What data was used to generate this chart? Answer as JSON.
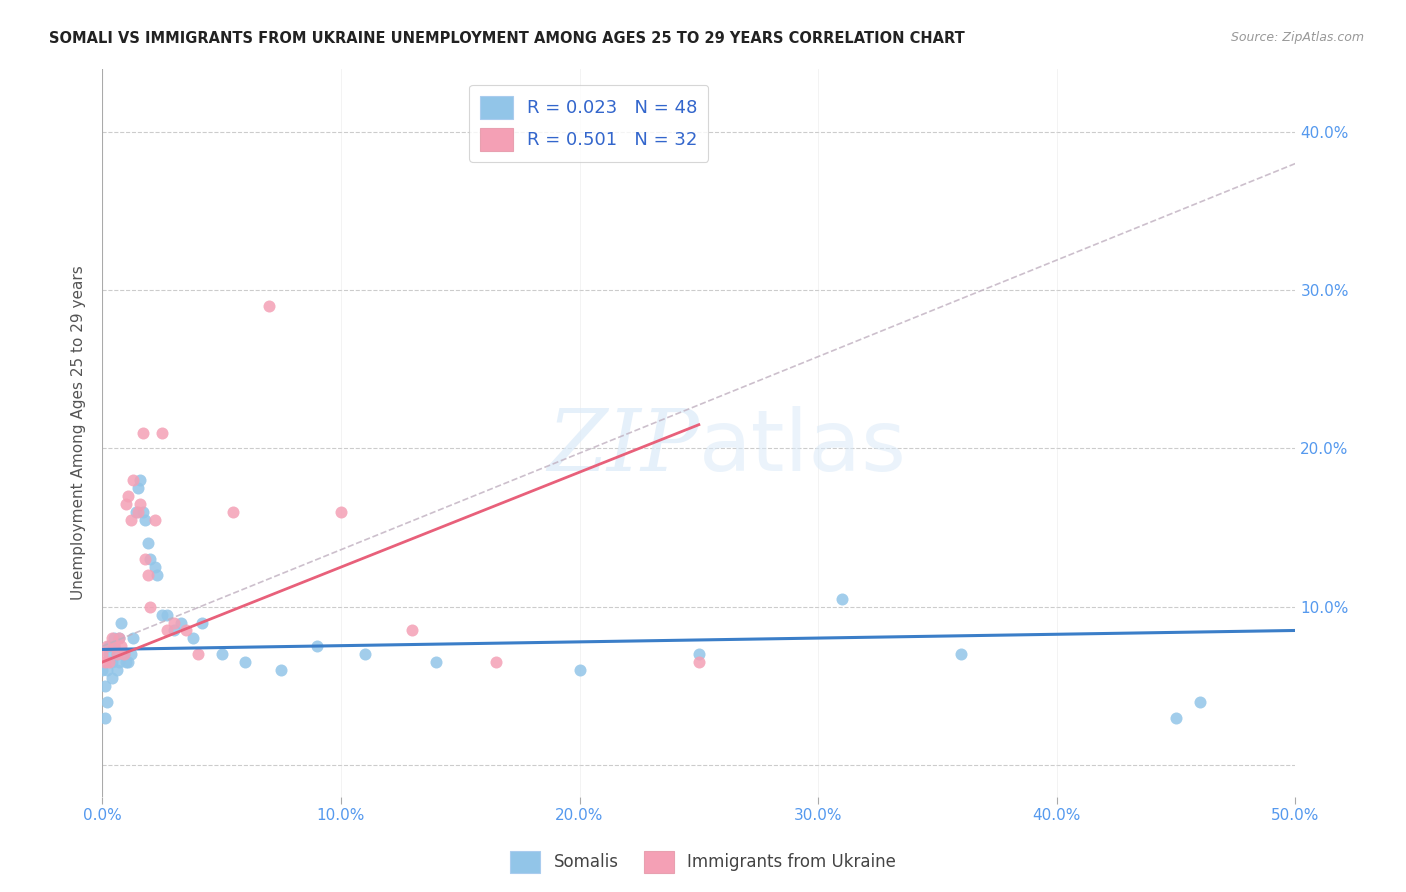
{
  "title": "SOMALI VS IMMIGRANTS FROM UKRAINE UNEMPLOYMENT AMONG AGES 25 TO 29 YEARS CORRELATION CHART",
  "source": "Source: ZipAtlas.com",
  "ylabel": "Unemployment Among Ages 25 to 29 years",
  "xlim": [
    0.0,
    0.5
  ],
  "ylim": [
    -0.02,
    0.44
  ],
  "ytick_positions": [
    0.0,
    0.1,
    0.2,
    0.3,
    0.4
  ],
  "ytick_labels": [
    "",
    "10.0%",
    "20.0%",
    "30.0%",
    "40.0%"
  ],
  "xtick_positions": [
    0.0,
    0.1,
    0.2,
    0.3,
    0.4,
    0.5
  ],
  "xtick_labels": [
    "0.0%",
    "10.0%",
    "20.0%",
    "30.0%",
    "40.0%",
    "50.0%"
  ],
  "watermark": "ZIPatlas",
  "legend_label_somali": "Somalis",
  "legend_label_ukraine": "Immigrants from Ukraine",
  "somali_color": "#92c5e8",
  "ukraine_color": "#f4a0b5",
  "trendline_somali_color": "#3b7ec8",
  "trendline_ukraine_color": "#e8607a",
  "trendline_dashed_color": "#c8a0b0",
  "somali_R": 0.023,
  "somali_N": 48,
  "ukraine_R": 0.501,
  "ukraine_N": 32,
  "somali_x": [
    0.0,
    0.001,
    0.001,
    0.002,
    0.002,
    0.003,
    0.003,
    0.004,
    0.004,
    0.005,
    0.005,
    0.006,
    0.006,
    0.007,
    0.007,
    0.008,
    0.009,
    0.01,
    0.011,
    0.012,
    0.013,
    0.014,
    0.015,
    0.016,
    0.017,
    0.018,
    0.019,
    0.02,
    0.022,
    0.023,
    0.025,
    0.027,
    0.03,
    0.033,
    0.038,
    0.042,
    0.05,
    0.06,
    0.075,
    0.09,
    0.11,
    0.14,
    0.2,
    0.25,
    0.31,
    0.36,
    0.45,
    0.46
  ],
  "somali_y": [
    0.06,
    0.03,
    0.05,
    0.04,
    0.06,
    0.075,
    0.07,
    0.065,
    0.055,
    0.08,
    0.075,
    0.07,
    0.06,
    0.065,
    0.08,
    0.09,
    0.07,
    0.065,
    0.065,
    0.07,
    0.08,
    0.16,
    0.175,
    0.18,
    0.16,
    0.155,
    0.14,
    0.13,
    0.125,
    0.12,
    0.095,
    0.095,
    0.085,
    0.09,
    0.08,
    0.09,
    0.07,
    0.065,
    0.06,
    0.075,
    0.07,
    0.065,
    0.06,
    0.07,
    0.105,
    0.07,
    0.03,
    0.04
  ],
  "ukraine_x": [
    0.0,
    0.001,
    0.002,
    0.003,
    0.004,
    0.005,
    0.006,
    0.007,
    0.008,
    0.009,
    0.01,
    0.011,
    0.012,
    0.013,
    0.015,
    0.016,
    0.017,
    0.018,
    0.019,
    0.02,
    0.022,
    0.025,
    0.027,
    0.03,
    0.035,
    0.04,
    0.055,
    0.07,
    0.1,
    0.13,
    0.165,
    0.25
  ],
  "ukraine_y": [
    0.07,
    0.065,
    0.075,
    0.065,
    0.08,
    0.075,
    0.07,
    0.08,
    0.075,
    0.07,
    0.165,
    0.17,
    0.155,
    0.18,
    0.16,
    0.165,
    0.21,
    0.13,
    0.12,
    0.1,
    0.155,
    0.21,
    0.085,
    0.09,
    0.085,
    0.07,
    0.16,
    0.29,
    0.16,
    0.085,
    0.065,
    0.065
  ],
  "somali_trendline_x": [
    0.0,
    0.5
  ],
  "somali_trendline_y": [
    0.073,
    0.085
  ],
  "ukraine_trendline_x": [
    0.0,
    0.25
  ],
  "ukraine_trendline_y": [
    0.065,
    0.215
  ],
  "dashed_trendline_x": [
    0.0,
    0.5
  ],
  "dashed_trendline_y": [
    0.075,
    0.38
  ]
}
